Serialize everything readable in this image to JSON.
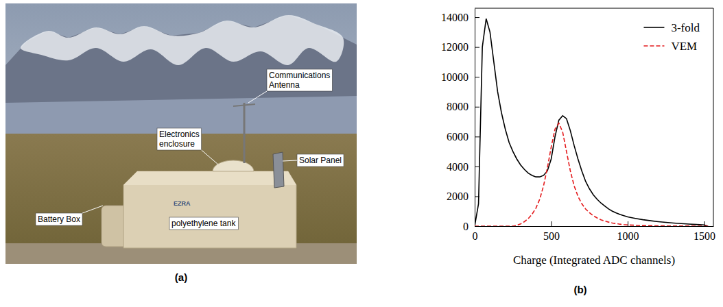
{
  "photo": {
    "caption": "(a)",
    "labels": [
      {
        "lines": [
          "Communications",
          "Antenna"
        ]
      },
      {
        "lines": [
          "Electronics",
          "enclosure"
        ]
      },
      {
        "lines": [
          "Solar Panel"
        ]
      },
      {
        "lines": [
          "Battery Box"
        ]
      },
      {
        "lines": [
          "polyethylene tank"
        ]
      }
    ],
    "tank_text": "EZRA"
  },
  "chart_data": {
    "type": "line",
    "panel_label": "(b)",
    "x_label": "Charge (Integrated ADC channels)",
    "x": [
      0,
      25,
      50,
      75,
      100,
      125,
      150,
      175,
      200,
      225,
      250,
      275,
      300,
      325,
      350,
      375,
      400,
      425,
      450,
      475,
      500,
      525,
      550,
      575,
      600,
      625,
      650,
      675,
      700,
      725,
      750,
      775,
      800,
      825,
      850,
      875,
      900,
      925,
      950,
      975,
      1000,
      1050,
      1100,
      1150,
      1200,
      1250,
      1300,
      1350,
      1400,
      1450,
      1500,
      1525
    ],
    "series": [
      {
        "name": "3-fold",
        "color": "#000000",
        "line_style": "solid",
        "values": [
          0,
          1500,
          12000,
          13900,
          13000,
          11000,
          9000,
          7600,
          6500,
          5600,
          5000,
          4500,
          4100,
          3800,
          3550,
          3400,
          3300,
          3300,
          3400,
          3700,
          4500,
          6000,
          7100,
          7400,
          7200,
          6400,
          5400,
          4500,
          3700,
          3000,
          2500,
          2100,
          1800,
          1550,
          1350,
          1150,
          1000,
          880,
          780,
          700,
          620,
          520,
          430,
          360,
          300,
          250,
          210,
          170,
          140,
          110,
          80,
          0
        ]
      },
      {
        "name": "VEM",
        "color": "#e41a1c",
        "line_style": "dashed",
        "values": [
          0,
          0,
          0,
          0,
          0,
          0,
          0,
          0,
          0,
          0,
          0,
          50,
          150,
          300,
          500,
          800,
          1200,
          1800,
          2700,
          3900,
          5300,
          6500,
          6900,
          6300,
          5000,
          3700,
          2700,
          2000,
          1500,
          1150,
          900,
          700,
          550,
          430,
          340,
          270,
          210,
          170,
          130,
          100,
          80,
          60,
          40,
          30,
          20,
          15,
          10,
          8,
          5,
          3,
          0,
          0
        ]
      }
    ],
    "xlim": [
      0,
      1560
    ],
    "xticks": [
      0,
      500,
      1000,
      1500
    ],
    "ylim": [
      0,
      14600
    ],
    "yticks": [
      0,
      2000,
      4000,
      6000,
      8000,
      10000,
      12000,
      14000
    ],
    "legend": "upper right",
    "grid": false
  }
}
